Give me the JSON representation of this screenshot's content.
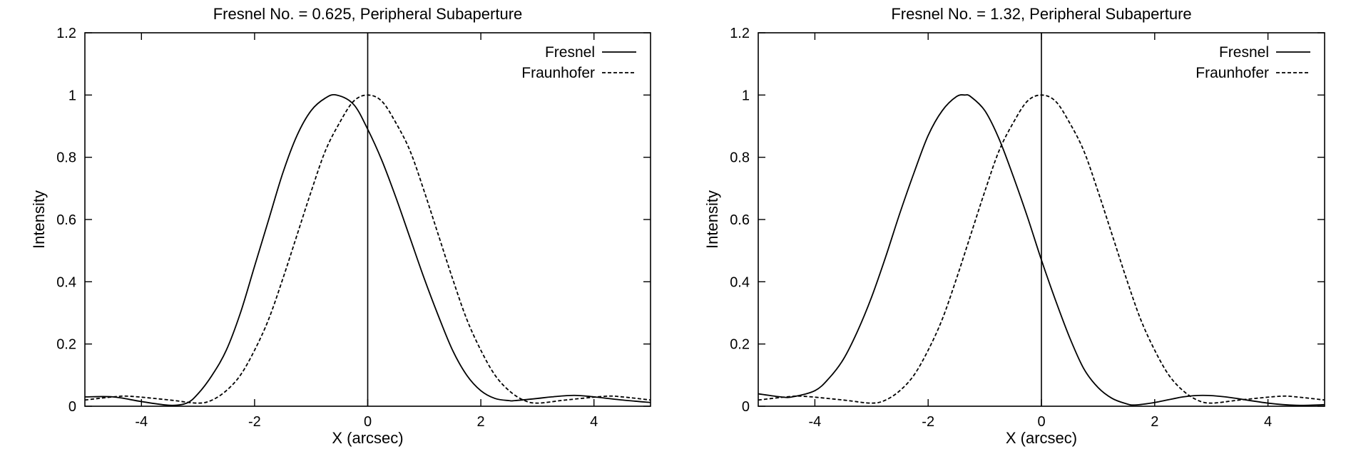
{
  "chart_data": [
    {
      "type": "line",
      "title": "Fresnel No. = 0.625, Peripheral Subaperture",
      "xlabel": "X (arcsec)",
      "ylabel": "Intensity",
      "xlim": [
        -5,
        5
      ],
      "ylim": [
        0,
        1.2
      ],
      "x_ticks": [
        "-4",
        "-2",
        "0",
        "2",
        "4"
      ],
      "y_ticks": [
        "0",
        "0.2",
        "0.4",
        "0.6",
        "0.8",
        "1",
        "1.2"
      ],
      "x_tick_values": [
        -4,
        -2,
        0,
        2,
        4
      ],
      "y_tick_values": [
        0,
        0.2,
        0.4,
        0.6,
        0.8,
        1.0,
        1.2
      ],
      "legend_position": "top-right",
      "reference_line_x": 0,
      "series": [
        {
          "name": "Fresnel",
          "style": "solid",
          "x": [
            -5,
            -4.5,
            -4,
            -3.5,
            -3.2,
            -3,
            -2.75,
            -2.5,
            -2.25,
            -2,
            -1.75,
            -1.5,
            -1.25,
            -1,
            -0.75,
            -0.55,
            -0.25,
            0,
            0.25,
            0.5,
            0.75,
            1,
            1.25,
            1.5,
            1.75,
            2,
            2.25,
            2.5,
            2.6,
            3,
            3.25,
            3.65,
            4,
            4.5,
            5
          ],
          "y": [
            0.03,
            0.03,
            0.015,
            0.003,
            0.01,
            0.04,
            0.1,
            0.18,
            0.3,
            0.45,
            0.6,
            0.75,
            0.87,
            0.95,
            0.99,
            1.0,
            0.97,
            0.89,
            0.79,
            0.67,
            0.54,
            0.41,
            0.29,
            0.18,
            0.1,
            0.05,
            0.025,
            0.018,
            0.018,
            0.025,
            0.03,
            0.035,
            0.03,
            0.02,
            0.012
          ]
        },
        {
          "name": "Fraunhofer",
          "style": "dashed",
          "x": [
            -5,
            -4.5,
            -4.2,
            -3.5,
            -3,
            -2.75,
            -2.5,
            -2.25,
            -2,
            -1.75,
            -1.5,
            -1.25,
            -1,
            -0.75,
            -0.5,
            -0.25,
            0,
            0.25,
            0.5,
            0.75,
            1,
            1.25,
            1.5,
            1.75,
            2,
            2.25,
            2.5,
            2.75,
            3,
            3.5,
            4.2,
            4.5,
            5
          ],
          "y": [
            0.02,
            0.03,
            0.032,
            0.02,
            0.01,
            0.02,
            0.05,
            0.1,
            0.18,
            0.28,
            0.41,
            0.55,
            0.69,
            0.82,
            0.91,
            0.98,
            1.0,
            0.98,
            0.91,
            0.82,
            0.69,
            0.55,
            0.41,
            0.28,
            0.18,
            0.1,
            0.05,
            0.02,
            0.01,
            0.02,
            0.032,
            0.03,
            0.02
          ]
        }
      ]
    },
    {
      "type": "line",
      "title": "Fresnel No. = 1.32, Peripheral Subaperture",
      "xlabel": "X (arcsec)",
      "ylabel": "Intensity",
      "xlim": [
        -5,
        5
      ],
      "ylim": [
        0,
        1.2
      ],
      "x_ticks": [
        "-4",
        "-2",
        "0",
        "2",
        "4"
      ],
      "y_ticks": [
        "0",
        "0.2",
        "0.4",
        "0.6",
        "0.8",
        "1",
        "1.2"
      ],
      "x_tick_values": [
        -4,
        -2,
        0,
        2,
        4
      ],
      "y_tick_values": [
        0,
        0.2,
        0.4,
        0.6,
        0.8,
        1.0,
        1.2
      ],
      "legend_position": "top-right",
      "reference_line_x": 0,
      "series": [
        {
          "name": "Fresnel",
          "style": "solid",
          "x": [
            -5,
            -4.6,
            -4.4,
            -4,
            -3.75,
            -3.5,
            -3.25,
            -3,
            -2.75,
            -2.5,
            -2.25,
            -2,
            -1.75,
            -1.5,
            -1.35,
            -1.25,
            -1,
            -0.75,
            -0.5,
            -0.25,
            0,
            0.25,
            0.5,
            0.75,
            1,
            1.25,
            1.5,
            1.65,
            2,
            2.5,
            2.85,
            3.25,
            4,
            4.5,
            5
          ],
          "y": [
            0.04,
            0.03,
            0.03,
            0.05,
            0.09,
            0.15,
            0.24,
            0.35,
            0.48,
            0.62,
            0.75,
            0.87,
            0.95,
            0.995,
            1.0,
            0.995,
            0.95,
            0.86,
            0.74,
            0.61,
            0.47,
            0.34,
            0.22,
            0.12,
            0.06,
            0.025,
            0.008,
            0.004,
            0.012,
            0.03,
            0.035,
            0.03,
            0.01,
            0.003,
            0.005
          ]
        },
        {
          "name": "Fraunhofer",
          "style": "dashed",
          "x": [
            -5,
            -4.5,
            -4.2,
            -3.5,
            -3,
            -2.75,
            -2.5,
            -2.25,
            -2,
            -1.75,
            -1.5,
            -1.25,
            -1,
            -0.75,
            -0.5,
            -0.25,
            0,
            0.25,
            0.5,
            0.75,
            1,
            1.25,
            1.5,
            1.75,
            2,
            2.25,
            2.5,
            2.75,
            3,
            3.5,
            4.2,
            4.5,
            5
          ],
          "y": [
            0.02,
            0.03,
            0.032,
            0.02,
            0.01,
            0.02,
            0.05,
            0.1,
            0.18,
            0.28,
            0.41,
            0.55,
            0.69,
            0.82,
            0.91,
            0.98,
            1.0,
            0.98,
            0.91,
            0.82,
            0.69,
            0.55,
            0.41,
            0.28,
            0.18,
            0.1,
            0.05,
            0.02,
            0.01,
            0.02,
            0.032,
            0.03,
            0.02
          ]
        }
      ]
    }
  ]
}
